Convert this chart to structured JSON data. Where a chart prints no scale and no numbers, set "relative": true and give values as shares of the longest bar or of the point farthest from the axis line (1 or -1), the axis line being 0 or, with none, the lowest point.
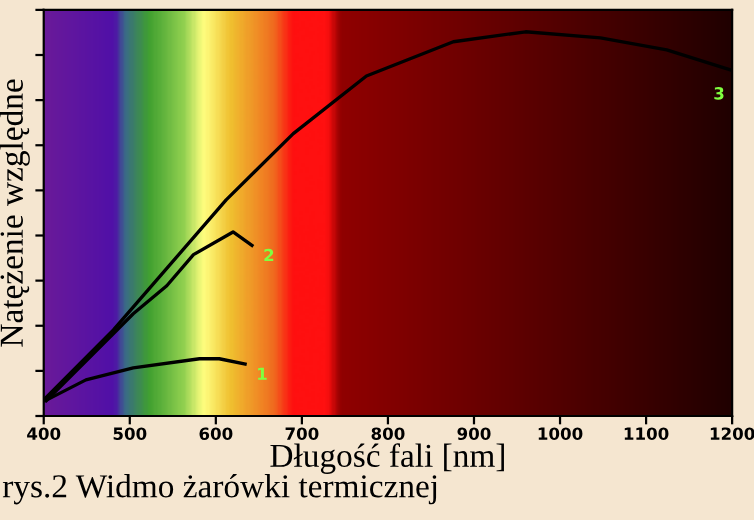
{
  "chart_data": {
    "type": "line",
    "relative": true,
    "xlabel": "Długość fali [nm]",
    "ylabel": "Natężenie względne",
    "xlim": [
      400,
      1200
    ],
    "xticks": [
      400,
      500,
      600,
      700,
      800,
      900,
      1000,
      1100,
      1200
    ],
    "series": [
      {
        "name": "1",
        "color": "#000000",
        "x": [
          402,
          449,
          504,
          581,
          604,
          634
        ],
        "values": [
          0.04,
          0.094,
          0.125,
          0.149,
          0.149,
          0.135
        ]
      },
      {
        "name": "2",
        "color": "#000000",
        "x": [
          403,
          504,
          543,
          574,
          620,
          642
        ],
        "values": [
          0.04,
          0.266,
          0.339,
          0.42,
          0.479,
          0.444
        ]
      },
      {
        "name": "3",
        "color": "#000000",
        "x": [
          400,
          481,
          612,
          690,
          775,
          876,
          960,
          1047,
          1124,
          1198
        ],
        "values": [
          0.042,
          0.224,
          0.5625,
          0.735,
          0.885,
          0.974,
          1.0,
          0.984,
          0.953,
          0.901
        ]
      }
    ],
    "legend": false,
    "grid": false,
    "marker": "none",
    "line_style": "solid",
    "annotations": [
      "rys.2 Widmo żarówki termicznej"
    ]
  }
}
